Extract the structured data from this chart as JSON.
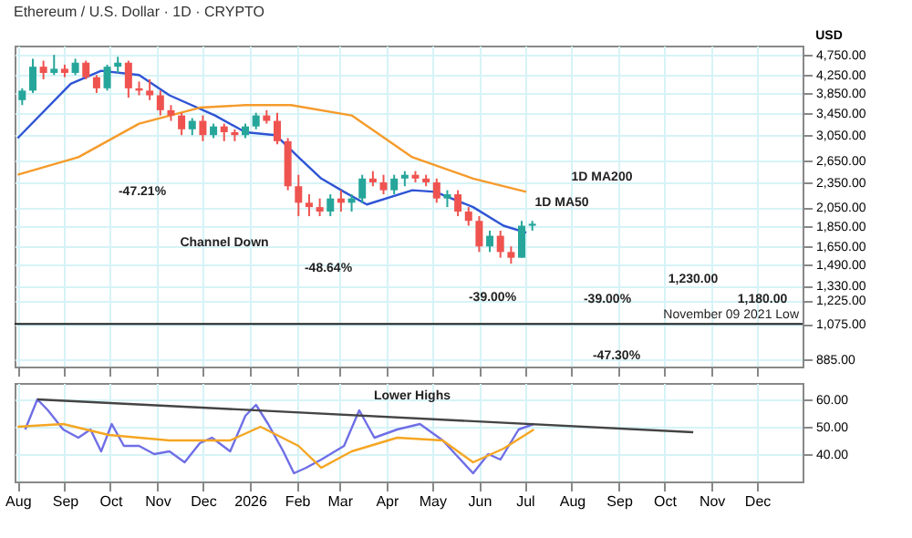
{
  "chart_data": [
    {
      "type": "candlestick",
      "title": "Ethereum / U.S. Dollar · 1D · CRYPTO",
      "x": [
        "2025-08-04",
        "2025-08-11",
        "2025-08-18",
        "2025-08-25",
        "2025-09-01",
        "2025-09-08",
        "2025-09-15",
        "2025-09-22",
        "2025-09-29",
        "2025-10-06",
        "2025-10-13",
        "2025-10-20",
        "2025-10-27",
        "2025-11-03",
        "2025-11-10",
        "2025-11-17",
        "2025-11-24",
        "2025-12-01",
        "2025-12-08",
        "2025-12-15",
        "2025-12-22",
        "2025-12-29",
        "2026-01-05",
        "2026-01-12",
        "2026-01-19",
        "2026-01-26",
        "2026-02-02",
        "2026-02-09",
        "2026-02-16",
        "2026-02-23",
        "2026-03-02",
        "2026-03-09",
        "2026-03-16",
        "2026-03-23",
        "2026-03-30",
        "2026-04-06",
        "2026-04-13",
        "2026-04-20",
        "2026-04-27",
        "2026-05-04",
        "2026-05-11",
        "2026-05-18",
        "2026-05-25",
        "2026-06-01",
        "2026-06-08",
        "2026-06-15",
        "2026-06-22",
        "2026-06-29",
        "2026-07-06"
      ],
      "ohlc": [
        [
          3700,
          3950,
          3600,
          3900
        ],
        [
          3900,
          4650,
          3850,
          4450
        ],
        [
          4450,
          4600,
          4150,
          4300
        ],
        [
          4300,
          4750,
          4250,
          4400
        ],
        [
          4400,
          4500,
          4200,
          4300
        ],
        [
          4300,
          4650,
          4250,
          4550
        ],
        [
          4550,
          4600,
          4150,
          4200
        ],
        [
          4200,
          4250,
          3850,
          3950
        ],
        [
          3950,
          4500,
          3900,
          4450
        ],
        [
          4450,
          4700,
          4300,
          4550
        ],
        [
          4550,
          4600,
          3750,
          3950
        ],
        [
          3950,
          4100,
          3800,
          3900
        ],
        [
          3900,
          4150,
          3700,
          3800
        ],
        [
          3800,
          3900,
          3400,
          3500
        ],
        [
          3500,
          3600,
          3300,
          3400
        ],
        [
          3400,
          3450,
          3050,
          3150
        ],
        [
          3150,
          3350,
          3050,
          3300
        ],
        [
          3300,
          3400,
          2950,
          3050
        ],
        [
          3050,
          3250,
          3000,
          3200
        ],
        [
          3200,
          3250,
          2950,
          3100
        ],
        [
          3100,
          3150,
          2950,
          3050
        ],
        [
          3050,
          3250,
          3000,
          3200
        ],
        [
          3200,
          3450,
          3150,
          3400
        ],
        [
          3400,
          3500,
          3250,
          3300
        ],
        [
          3300,
          3450,
          2900,
          2950
        ],
        [
          2950,
          3000,
          2250,
          2300
        ],
        [
          2300,
          2450,
          1950,
          2100
        ],
        [
          2100,
          2200,
          1950,
          2050
        ],
        [
          2050,
          2150,
          1950,
          2000
        ],
        [
          2000,
          2200,
          1950,
          2150
        ],
        [
          2150,
          2250,
          2000,
          2100
        ],
        [
          2100,
          2200,
          2000,
          2150
        ],
        [
          2150,
          2450,
          2100,
          2400
        ],
        [
          2400,
          2500,
          2300,
          2350
        ],
        [
          2350,
          2450,
          2200,
          2250
        ],
        [
          2250,
          2450,
          2200,
          2400
        ],
        [
          2400,
          2500,
          2300,
          2450
        ],
        [
          2450,
          2500,
          2350,
          2400
        ],
        [
          2400,
          2450,
          2300,
          2350
        ],
        [
          2350,
          2400,
          2100,
          2150
        ],
        [
          2150,
          2250,
          2050,
          2200
        ],
        [
          2200,
          2250,
          1950,
          2000
        ],
        [
          2000,
          2050,
          1850,
          1900
        ],
        [
          1900,
          1950,
          1600,
          1650
        ],
        [
          1650,
          1800,
          1600,
          1750
        ],
        [
          1750,
          1800,
          1550,
          1600
        ],
        [
          1600,
          1650,
          1500,
          1550
        ],
        [
          1550,
          1900,
          1550,
          1850
        ],
        [
          1850,
          1900,
          1800,
          1870
        ]
      ],
      "colors": [
        "#26a69a",
        "#26a69a",
        "#ef5350",
        "#26a69a",
        "#ef5350",
        "#26a69a",
        "#ef5350",
        "#ef5350",
        "#26a69a",
        "#26a69a",
        "#ef5350",
        "#ef5350",
        "#ef5350",
        "#ef5350",
        "#ef5350",
        "#ef5350",
        "#26a69a",
        "#ef5350",
        "#26a69a",
        "#ef5350",
        "#ef5350",
        "#26a69a",
        "#26a69a",
        "#ef5350",
        "#ef5350",
        "#ef5350",
        "#ef5350",
        "#ef5350",
        "#ef5350",
        "#26a69a",
        "#ef5350",
        "#26a69a",
        "#26a69a",
        "#ef5350",
        "#ef5350",
        "#26a69a",
        "#26a69a",
        "#ef5350",
        "#ef5350",
        "#ef5350",
        "#26a69a",
        "#ef5350",
        "#ef5350",
        "#ef5350",
        "#26a69a",
        "#ef5350",
        "#ef5350",
        "#26a69a",
        "#26a69a"
      ],
      "series": [
        {
          "type": "line",
          "color": "#2f55d4",
          "x": [
            "2025-08-01",
            "2025-09-05",
            "2025-09-25",
            "2025-10-20",
            "2025-11-09",
            "2025-12-09",
            "2025-12-29",
            "2026-01-18",
            "2026-02-02",
            "2026-02-17",
            "2026-03-04",
            "2026-03-19",
            "2026-04-18",
            "2026-05-03",
            "2026-05-28",
            "2026-06-17",
            "2026-07-02"
          ],
          "values": [
            3000,
            4050,
            4350,
            4250,
            3800,
            3400,
            3100,
            3050,
            2700,
            2400,
            2230,
            2080,
            2250,
            2230,
            2050,
            1850,
            1780
          ]
        },
        {
          "type": "line",
          "color": "#f59b2b",
          "x": [
            "2025-08-01",
            "2025-09-10",
            "2025-10-20",
            "2025-11-29",
            "2025-12-29",
            "2026-01-28",
            "2026-03-09",
            "2026-04-18",
            "2026-05-28",
            "2026-07-02"
          ],
          "values": [
            2450,
            2700,
            3250,
            3550,
            3600,
            3600,
            3400,
            2700,
            2400,
            2230
          ]
        }
      ],
      "xlim": [
        "2025-07-30",
        "2026-12-31"
      ],
      "xticks": [
        {
          "value": "2025-08-01",
          "label": null
        },
        {
          "value": "2025-09-01",
          "label": null
        },
        {
          "value": "2025-10-01",
          "label": null
        },
        {
          "value": "2025-11-01",
          "label": null
        },
        {
          "value": "2025-12-01",
          "label": null
        },
        {
          "value": "2026-01-01",
          "label": null
        },
        {
          "value": "2026-02-01",
          "label": null
        },
        {
          "value": "2026-03-01",
          "label": null
        },
        {
          "value": "2026-04-01",
          "label": null
        },
        {
          "value": "2026-05-01",
          "label": null
        },
        {
          "value": "2026-06-01",
          "label": null
        },
        {
          "value": "2026-07-01",
          "label": null
        },
        {
          "value": "2026-08-01",
          "label": null
        },
        {
          "value": "2026-09-01",
          "label": null
        },
        {
          "value": "2026-10-01",
          "label": null
        },
        {
          "value": "2026-11-01",
          "label": null
        },
        {
          "value": "2026-12-01",
          "label": null
        }
      ],
      "ylim": [
        850,
        5000
      ],
      "log": true,
      "yticks": [
        {
          "value": 4750,
          "label": "4,750.00"
        },
        {
          "value": 4250,
          "label": "4,250.00"
        },
        {
          "value": 3850,
          "label": "3,850.00"
        },
        {
          "value": 3450,
          "label": "3,450.00"
        },
        {
          "value": 3050,
          "label": "3,050.00"
        },
        {
          "value": 2650,
          "label": "2,650.00"
        },
        {
          "value": 2350,
          "label": "2,350.00"
        },
        {
          "value": 2050,
          "label": "2,050.00"
        },
        {
          "value": 1850,
          "label": "1,850.00"
        },
        {
          "value": 1650,
          "label": "1,650.00"
        },
        {
          "value": 1490,
          "label": "1,490.00"
        },
        {
          "value": 1330,
          "label": "1,330.00"
        },
        {
          "value": 1225,
          "label": "1,225.00"
        },
        {
          "value": 1075,
          "label": "1,075.00"
        },
        {
          "value": 885,
          "label": "885.00"
        }
      ],
      "ylabel": "USD",
      "tick_labels": "y",
      "grid": true,
      "ref_lines": [
        {
          "axis": "y",
          "value": 1075,
          "label": "November 09 2021 Low",
          "color": "#222222"
        }
      ],
      "annotations": [
        "-47.21%",
        "Channel Down",
        "-48.64%",
        "-39.00%",
        "1D MA200",
        "1D MA50",
        "1,230.00",
        "1,180.00",
        "-39.00%",
        "-47.30%"
      ]
    },
    {
      "type": "line",
      "series": [
        {
          "color": "#6f6fe6",
          "x": [
            "2025-08-06",
            "2025-08-14",
            "2025-08-21",
            "2025-08-31",
            "2025-09-10",
            "2025-09-18",
            "2025-09-25",
            "2025-10-02",
            "2025-10-10",
            "2025-10-20",
            "2025-10-30",
            "2025-11-09",
            "2025-11-19",
            "2025-11-29",
            "2025-12-07",
            "2025-12-19",
            "2025-12-29",
            "2026-01-05",
            "2026-01-13",
            "2026-01-23",
            "2026-01-30",
            "2026-02-07",
            "2026-02-17",
            "2026-03-04",
            "2026-03-14",
            "2026-03-24",
            "2026-04-08",
            "2026-04-23",
            "2026-05-08",
            "2026-05-18",
            "2026-05-28",
            "2026-06-07",
            "2026-06-15",
            "2026-06-27",
            "2026-07-07"
          ],
          "values": [
            49,
            60,
            56,
            49,
            46,
            49,
            41,
            51,
            43,
            43,
            40,
            41,
            37,
            44,
            46,
            41,
            54,
            58,
            51,
            41,
            33,
            35,
            38,
            43,
            56,
            46,
            49,
            51,
            45,
            39,
            33,
            40,
            38,
            49,
            51
          ]
        },
        {
          "color": "#f5a623",
          "x": [
            "2025-08-01",
            "2025-08-31",
            "2025-09-30",
            "2025-11-09",
            "2025-12-19",
            "2026-01-08",
            "2026-02-02",
            "2026-02-17",
            "2026-03-09",
            "2026-04-08",
            "2026-05-08",
            "2026-05-28",
            "2026-06-17",
            "2026-07-07"
          ],
          "values": [
            50,
            51,
            47,
            45,
            45,
            50,
            43,
            35,
            41,
            46,
            45,
            37,
            42,
            49
          ]
        },
        {
          "color": "#444444",
          "x": [
            "2025-08-14",
            "2026-10-20"
          ],
          "values": [
            60,
            48
          ]
        }
      ],
      "xlim": [
        "2025-07-30",
        "2026-12-31"
      ],
      "xticks": [
        {
          "value": "2025-08-01",
          "label": "Aug"
        },
        {
          "value": "2025-09-01",
          "label": "Sep"
        },
        {
          "value": "2025-10-01",
          "label": "Oct"
        },
        {
          "value": "2025-11-01",
          "label": "Nov"
        },
        {
          "value": "2025-12-01",
          "label": "Dec"
        },
        {
          "value": "2026-01-01",
          "label": "2026"
        },
        {
          "value": "2026-02-01",
          "label": "Feb"
        },
        {
          "value": "2026-03-01",
          "label": "Mar"
        },
        {
          "value": "2026-04-01",
          "label": "Apr"
        },
        {
          "value": "2026-05-01",
          "label": "May"
        },
        {
          "value": "2026-06-01",
          "label": "Jun"
        },
        {
          "value": "2026-07-01",
          "label": "Jul"
        },
        {
          "value": "2026-08-01",
          "label": "Aug"
        },
        {
          "value": "2026-09-01",
          "label": "Sep"
        },
        {
          "value": "2026-10-01",
          "label": "Oct"
        },
        {
          "value": "2026-11-01",
          "label": "Nov"
        },
        {
          "value": "2026-12-01",
          "label": "Dec"
        }
      ],
      "ylim": [
        30,
        66
      ],
      "yticks": [
        {
          "value": 60,
          "label": "60.00"
        },
        {
          "value": 50,
          "label": "50.00"
        },
        {
          "value": 40,
          "label": "40.00"
        }
      ],
      "grid": true,
      "annotations": [
        "Lower Highs"
      ]
    }
  ]
}
